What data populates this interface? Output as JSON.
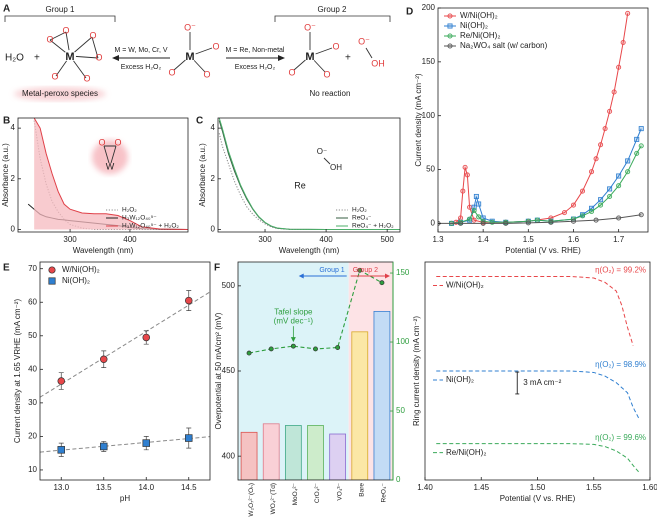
{
  "diagram": {
    "panel": "A",
    "group1": "Group 1",
    "group2": "Group 2",
    "water": "H₂O",
    "plus": "+",
    "metal": "M",
    "oxygen": "O",
    "left_condition": "M = W, Mo, Cr, V",
    "left_reagent": "Excess H₂O₂",
    "right_condition": "M = Re, Non-metal",
    "right_reagent": "Excess H₂O₂",
    "left_caption": "Metal-peroxo species",
    "right_caption": "No reaction",
    "oxo_anion": "O⁻",
    "hydroxyl": "OH"
  },
  "chart_data": [
    {
      "panel": "B",
      "type": "line",
      "xlabel": "Wavelength (nm)",
      "ylabel": "Absorbance (a.u.)",
      "xlim": [
        213,
        497
      ],
      "ylim": [
        -0.1,
        4.4
      ],
      "xticks": [
        300,
        400
      ],
      "yticks": [
        0,
        2,
        4
      ],
      "legend": "lower right",
      "x": [
        230,
        240,
        250,
        260,
        270,
        280,
        290,
        300,
        320,
        340,
        360,
        380,
        400,
        420,
        450,
        497
      ],
      "series": [
        {
          "name": "H₂O₂",
          "color": "#8a8a8a",
          "dash": "dotted",
          "values": [
            null,
            4.3,
            2.8,
            1.8,
            1.1,
            0.7,
            0.4,
            0.2,
            0.05,
            0,
            0,
            0,
            0,
            0,
            0,
            0
          ]
        },
        {
          "name": "H₃W₁₂O₄₀⁵⁻",
          "color": "#222222",
          "dash": "solid",
          "values": [
            1.0,
            0.8,
            0.6,
            0.5,
            0.45,
            0.4,
            0.38,
            0.35,
            0.3,
            0.25,
            0.2,
            0.15,
            0.08,
            0.03,
            0.01,
            0
          ]
        },
        {
          "name": "H₃W₁₂O₄₀⁵⁻ + H₂O₂",
          "color": "#e04048",
          "dash": "solid",
          "fill": "#f6b9bf",
          "values": [
            null,
            4.4,
            4.0,
            3.0,
            2.2,
            1.5,
            1.0,
            0.8,
            0.65,
            0.62,
            0.62,
            0.55,
            0.35,
            0.1,
            0.02,
            0
          ]
        }
      ],
      "inset_labels": [
        "O",
        "O",
        "W"
      ]
    },
    {
      "panel": "C",
      "type": "line",
      "xlabel": "Wavelength (nm)",
      "ylabel": "Absorbance (a.u.)",
      "xlim": [
        223,
        521
      ],
      "ylim": [
        -0.1,
        4.4
      ],
      "xticks": [
        300,
        400,
        500
      ],
      "yticks": [
        0,
        2,
        4
      ],
      "legend": "lower right",
      "x": [
        225,
        230,
        240,
        250,
        260,
        270,
        280,
        290,
        300,
        310,
        320,
        340,
        400,
        521
      ],
      "series": [
        {
          "name": "H₂O₂",
          "color": "#8a8a8a",
          "dash": "dotted",
          "values": [
            3.8,
            3.3,
            2.6,
            1.9,
            1.35,
            0.9,
            0.6,
            0.38,
            0.22,
            0.1,
            0.04,
            0,
            0,
            0
          ]
        },
        {
          "name": "ReO₄⁻",
          "color": "#355c40",
          "dash": "solid",
          "values": [
            4.3,
            3.9,
            3.0,
            2.3,
            1.7,
            1.2,
            0.8,
            0.48,
            0.27,
            0.13,
            0.05,
            0.01,
            0,
            0
          ]
        },
        {
          "name": "ReO₄⁻ + H₂O₂",
          "color": "#4caf6a",
          "dash": "solid",
          "values": [
            4.4,
            4.0,
            3.1,
            2.4,
            1.75,
            1.25,
            0.82,
            0.5,
            0.28,
            0.14,
            0.06,
            0.01,
            0,
            0
          ]
        }
      ],
      "annotations": [
        "Re",
        "O⁻",
        "OH"
      ]
    },
    {
      "panel": "D",
      "type": "line",
      "xlabel": "Potential (V vs. RHE)",
      "ylabel": "Current density (mA cm⁻²)",
      "xlim": [
        1.3,
        1.765
      ],
      "ylim": [
        -8,
        200
      ],
      "xticks": [
        1.3,
        1.4,
        1.5,
        1.6,
        1.7
      ],
      "yticks": [
        0,
        50,
        100,
        150,
        200
      ],
      "legend": "upper left",
      "series": [
        {
          "name": "W/Ni(OH)₂",
          "color": "#e8474a",
          "dash": "solid",
          "marker": "circle",
          "x": [
            1.33,
            1.34,
            1.35,
            1.355,
            1.36,
            1.365,
            1.37,
            1.38,
            1.4,
            1.45,
            1.5,
            1.55,
            1.58,
            1.6,
            1.62,
            1.64,
            1.65,
            1.66,
            1.67,
            1.68,
            1.69,
            1.7,
            1.71,
            1.72
          ],
          "values": [
            0,
            1,
            5,
            30,
            52,
            45,
            15,
            3,
            1,
            1,
            2,
            5,
            10,
            17,
            30,
            48,
            60,
            73,
            88,
            104,
            122,
            145,
            168,
            195
          ]
        },
        {
          "name": "Ni(OH)₂",
          "color": "#2f7fd0",
          "dash": "solid",
          "marker": "square",
          "x": [
            1.33,
            1.35,
            1.37,
            1.38,
            1.385,
            1.39,
            1.4,
            1.42,
            1.45,
            1.5,
            1.52,
            1.55,
            1.6,
            1.62,
            1.64,
            1.66,
            1.68,
            1.7,
            1.72,
            1.74,
            1.75
          ],
          "values": [
            0,
            1,
            3,
            15,
            25,
            18,
            5,
            2,
            1,
            2,
            3,
            2,
            4,
            8,
            14,
            22,
            32,
            44,
            58,
            78,
            88
          ]
        },
        {
          "name": "Re/Ni(OH)₂",
          "color": "#3aaa5a",
          "dash": "solid",
          "marker": "circle",
          "x": [
            1.33,
            1.35,
            1.37,
            1.38,
            1.39,
            1.4,
            1.42,
            1.45,
            1.5,
            1.52,
            1.55,
            1.6,
            1.62,
            1.64,
            1.66,
            1.68,
            1.7,
            1.72,
            1.74,
            1.75
          ],
          "values": [
            0,
            1,
            4,
            12,
            6,
            2,
            1,
            1,
            2,
            3,
            2,
            4,
            7,
            11,
            17,
            25,
            35,
            48,
            65,
            72
          ]
        },
        {
          "name": "Na₂WO₄ salt (w/ carbon)",
          "color": "#555555",
          "dash": "solid",
          "marker": "circle",
          "x": [
            1.3,
            1.35,
            1.4,
            1.45,
            1.5,
            1.55,
            1.6,
            1.65,
            1.7,
            1.75
          ],
          "values": [
            0,
            0,
            0,
            0,
            0.5,
            1,
            2,
            3,
            5,
            8
          ]
        }
      ]
    },
    {
      "panel": "E",
      "type": "scatter",
      "xlabel": "pH",
      "ylabel": "Current density at 1.65 VRHE (mA cm⁻²)",
      "xlim": [
        12.75,
        14.75
      ],
      "ylim": [
        7,
        72
      ],
      "xticks": [
        {
          "value": 13,
          "label": "13.0"
        },
        13.5,
        {
          "value": 14,
          "label": "14.0"
        },
        14.5
      ],
      "yticks": [
        10,
        20,
        30,
        40,
        50,
        60,
        70
      ],
      "legend": "upper left",
      "fit_line": true,
      "fit_color": "#8a8a8a",
      "x": [
        13,
        13.5,
        14,
        14.5
      ],
      "series": [
        {
          "name": "W/Ni(OH)₂",
          "color": "#e8474a",
          "marker": "circle",
          "values": [
            36.5,
            43,
            49.5,
            60.5
          ],
          "errors": [
            2.5,
            2.5,
            2,
            3
          ]
        },
        {
          "name": "Ni(OH)₂",
          "color": "#2f7fd0",
          "marker": "square",
          "values": [
            16,
            17,
            18,
            19.5
          ],
          "errors": [
            2,
            1.5,
            2,
            3
          ]
        }
      ]
    },
    {
      "panel": "F",
      "type": "bar",
      "ylabel": "Overpotential at 50 mA/cm² (mV)",
      "ylim": [
        386,
        514
      ],
      "yticks": [
        400,
        450,
        500
      ],
      "y2lim": [
        0,
        158
      ],
      "y2ticks": [
        0,
        50,
        100,
        150
      ],
      "y2color": "#2e9e3e",
      "categories": [
        "W₂O₇²⁻(Oₕ)",
        "WO₄²⁻(Td)",
        "MoO₄²⁻",
        "CrO₄²⁻",
        "VO₄³⁻",
        "Bare",
        "ReO₄⁻"
      ],
      "values": [
        414,
        419,
        418,
        418,
        413,
        473,
        485
      ],
      "colors": [
        "#f5c2c2",
        "#f9d0d6",
        "#bfe6d8",
        "#cdeccb",
        "#ddd0f2",
        "#fbe7a6",
        "#c3dbf5"
      ],
      "edge_colors": [
        "#d9534f",
        "#e07a8a",
        "#3fa887",
        "#5bb25a",
        "#8b6bd0",
        "#d8a928",
        "#3c7fd0"
      ],
      "series": [
        {
          "axis": "y2",
          "color": "#2e9e3e",
          "dash": "dashed",
          "marker": "circle",
          "values": [
            92,
            95,
            97,
            95,
            96,
            152,
            143
          ]
        }
      ],
      "annotation": [
        "Tafel slope",
        "(mV dec⁻¹)"
      ],
      "groups": [
        {
          "name": "Group 1",
          "size": 5,
          "color": "#dcf3f8",
          "arrow": "#2a6fd6"
        },
        {
          "name": "Group 2",
          "size": 2,
          "color": "#fde3e6",
          "arrow": "#e0404a"
        }
      ]
    },
    {
      "type": "line",
      "xlabel": "Potential (V vs. RHE)",
      "ylabel": "Ring current density (mA cm⁻²)",
      "xlim": [
        1.4,
        1.6
      ],
      "ylim": [
        0,
        30
      ],
      "xticks": [
        {
          "value": 1.4,
          "label": "1.40"
        },
        1.45,
        {
          "value": 1.5,
          "label": "1.50"
        },
        1.55,
        {
          "value": 1.6,
          "label": "1.60"
        }
      ],
      "legend": "inline",
      "series": [
        {
          "name": "W/Ni(OH)₂",
          "annotation": "η(O₂) = 99.2%",
          "color": "#e8474a",
          "dash": "dashed",
          "x": [
            1.41,
            1.45,
            1.5,
            1.53,
            1.55,
            1.56,
            1.57,
            1.575,
            1.58,
            1.585
          ],
          "values": [
            28,
            28,
            28,
            28,
            27.8,
            27.2,
            26,
            24,
            21,
            18.5
          ]
        },
        {
          "name": "Ni(OH)₂",
          "annotation": "η(O₂) = 98.9%",
          "color": "#2f7fd0",
          "dash": "dashed",
          "x": [
            1.41,
            1.45,
            1.5,
            1.53,
            1.55,
            1.56,
            1.57,
            1.58,
            1.585,
            1.59
          ],
          "values": [
            15,
            15,
            15,
            15,
            14.8,
            14.3,
            13.4,
            12,
            10,
            8.5
          ]
        },
        {
          "name": "Re/Ni(OH)₂",
          "annotation": "η(O₂) = 99.6%",
          "color": "#3aaa5a",
          "dash": "dashed",
          "x": [
            1.41,
            1.45,
            1.5,
            1.53,
            1.55,
            1.56,
            1.57,
            1.58,
            1.585,
            1.59
          ],
          "values": [
            5,
            5,
            5,
            5,
            4.9,
            4.6,
            4.0,
            3.0,
            2.0,
            1.1
          ]
        }
      ],
      "scale_bar": {
        "value": 3,
        "label": "3 mA cm⁻²"
      }
    }
  ]
}
